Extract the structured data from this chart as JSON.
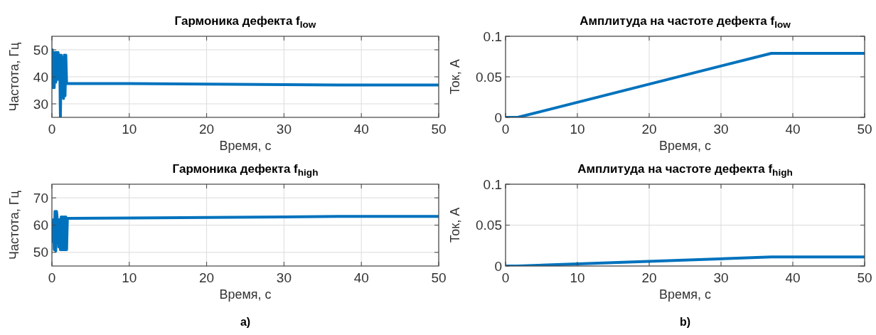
{
  "chart_data": [
    {
      "type": "line",
      "title": "Гармоника дефекта f$_{low}$",
      "xlabel": "Время, с",
      "ylabel": "Частота, Гц",
      "xlim": [
        0,
        50
      ],
      "xticks": [
        0,
        10,
        20,
        30,
        40,
        50
      ],
      "ylim": [
        25,
        55
      ],
      "yticks": [
        30,
        40,
        50
      ],
      "grid": true,
      "series": [
        {
          "color": "#0072bd",
          "x": [
            0,
            0.05,
            0.1,
            0.2,
            0.3,
            0.4,
            0.5,
            0.6,
            0.7,
            0.8,
            0.9,
            1.0,
            1.1,
            1.2,
            1.3,
            1.4,
            1.5,
            1.6,
            1.7,
            1.8,
            1.9,
            2,
            10,
            20,
            30,
            37,
            50
          ],
          "values": [
            40,
            50,
            36,
            49,
            36,
            49,
            38,
            49,
            39,
            49,
            39,
            48,
            25,
            48,
            38,
            47,
            32,
            48,
            33,
            48,
            37.5,
            37.5,
            37.5,
            37.3,
            37.1,
            37,
            37
          ]
        }
      ]
    },
    {
      "type": "line",
      "title": "Амплитуда на частоте дефекта f$_{low}$",
      "xlabel": "Время, с",
      "ylabel": "Ток, А",
      "xlim": [
        0,
        50
      ],
      "xticks": [
        0,
        10,
        20,
        30,
        40,
        50
      ],
      "ylim": [
        0,
        0.1
      ],
      "yticks": [
        0,
        0.05,
        0.1
      ],
      "grid": true,
      "series": [
        {
          "color": "#0072bd",
          "x": [
            0,
            1.7,
            37,
            50
          ],
          "values": [
            0,
            0,
            0.079,
            0.079
          ]
        }
      ]
    },
    {
      "type": "line",
      "title": "Гармоника дефекта f$_{high}$",
      "xlabel": "Время, с",
      "ylabel": "Частота, Гц",
      "xlim": [
        0,
        50
      ],
      "xticks": [
        0,
        10,
        20,
        30,
        40,
        50
      ],
      "ylim": [
        45,
        75
      ],
      "yticks": [
        50,
        60,
        70
      ],
      "grid": true,
      "annotations": [
        "a)"
      ],
      "series": [
        {
          "color": "#0072bd",
          "x": [
            0,
            0.05,
            0.1,
            0.2,
            0.3,
            0.4,
            0.5,
            0.6,
            0.7,
            0.8,
            0.9,
            1.0,
            1.1,
            1.2,
            1.3,
            1.4,
            1.5,
            1.6,
            1.7,
            1.8,
            1.9,
            2,
            10,
            20,
            30,
            37,
            50
          ],
          "values": [
            54,
            61,
            54,
            62,
            51,
            65,
            50.5,
            65,
            62,
            62,
            52,
            62,
            51,
            63,
            51,
            63,
            51,
            63,
            51,
            63,
            51,
            62.5,
            62.6,
            62.8,
            63,
            63.2,
            63.2
          ]
        }
      ]
    },
    {
      "type": "line",
      "title": "Амплитуда на частоте дефекта f$_{high}$",
      "xlabel": "Время, с",
      "ylabel": "Ток, А",
      "xlim": [
        0,
        50
      ],
      "xticks": [
        0,
        10,
        20,
        30,
        40,
        50
      ],
      "ylim": [
        0,
        0.1
      ],
      "yticks": [
        0,
        0.05,
        0.1
      ],
      "grid": true,
      "annotations": [
        "b)"
      ],
      "series": [
        {
          "color": "#0072bd",
          "x": [
            0,
            1.7,
            37,
            50
          ],
          "values": [
            0,
            0,
            0.011,
            0.011
          ]
        }
      ]
    }
  ]
}
